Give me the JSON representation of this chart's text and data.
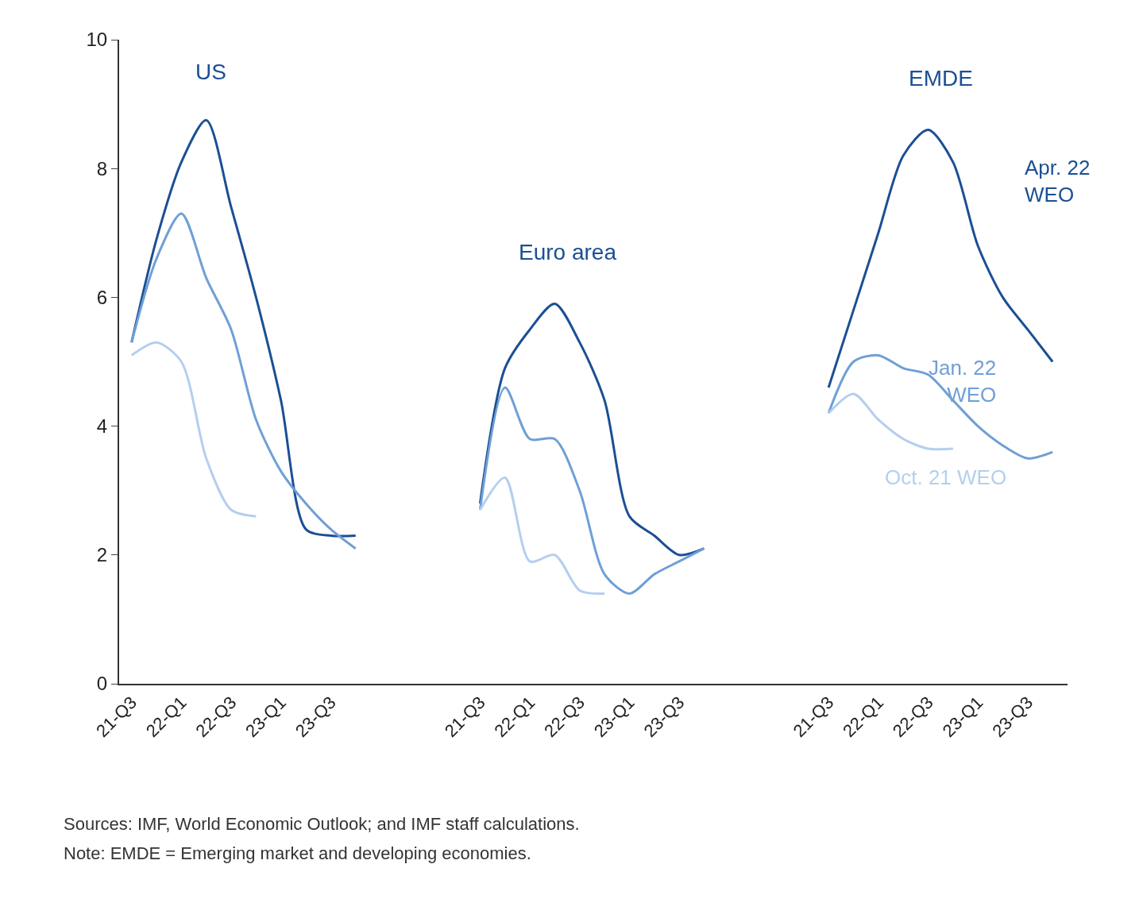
{
  "chart_data": {
    "type": "line",
    "categories": [
      "21-Q3",
      null,
      "22-Q1",
      null,
      "22-Q3",
      null,
      "23-Q1",
      null,
      "23-Q3",
      null,
      null,
      null,
      null,
      null,
      "21-Q3",
      null,
      "22-Q1",
      null,
      "22-Q3",
      null,
      "23-Q1",
      null,
      "23-Q3",
      null,
      null,
      null,
      null,
      null,
      "21-Q3",
      null,
      "22-Q1",
      null,
      "22-Q3",
      null,
      "23-Q1",
      null,
      "23-Q3",
      null
    ],
    "series": [
      {
        "name": "Apr. 22 WEO",
        "color": "#1b4f94",
        "values": [
          5.3,
          6.9,
          8.1,
          8.75,
          7.4,
          6.0,
          4.4,
          2.4,
          2.3,
          2.3,
          null,
          null,
          null,
          null,
          2.8,
          4.9,
          5.5,
          5.9,
          5.3,
          4.4,
          2.6,
          2.3,
          2.0,
          2.1,
          null,
          null,
          null,
          null,
          4.6,
          5.8,
          7.0,
          8.2,
          8.6,
          8.1,
          6.8,
          6.0,
          5.5,
          5.0
        ]
      },
      {
        "name": "Jan. 22 WEO",
        "color": "#6f9fd6",
        "values": [
          5.3,
          6.6,
          7.3,
          6.3,
          5.5,
          4.1,
          3.3,
          2.8,
          2.4,
          2.1,
          null,
          null,
          null,
          null,
          2.7,
          4.6,
          3.8,
          3.8,
          3.0,
          1.7,
          1.4,
          1.7,
          1.9,
          2.1,
          null,
          null,
          null,
          null,
          4.2,
          5.0,
          5.1,
          4.9,
          4.8,
          4.4,
          4.0,
          3.7,
          3.5,
          3.6
        ]
      },
      {
        "name": "Oct. 21 WEO",
        "color": "#b4cfee",
        "values": [
          5.1,
          5.3,
          5.0,
          3.5,
          2.7,
          2.6,
          null,
          null,
          null,
          null,
          null,
          null,
          null,
          null,
          2.7,
          3.2,
          1.9,
          2.0,
          1.45,
          1.4,
          null,
          null,
          null,
          null,
          null,
          null,
          null,
          null,
          4.2,
          4.5,
          4.1,
          3.8,
          3.65,
          3.65,
          null,
          null,
          null,
          null
        ]
      }
    ],
    "ylim": [
      0,
      10
    ],
    "yticks": [
      0,
      2,
      4,
      6,
      8,
      10
    ],
    "legend": false,
    "line_style": "solid",
    "marker": "none",
    "annotations": [
      "US",
      "Euro area",
      "EMDE",
      "Sources: IMF, World Economic Outlook; and IMF staff calculations.",
      "Note: EMDE = Emerging market and developing economies."
    ]
  }
}
